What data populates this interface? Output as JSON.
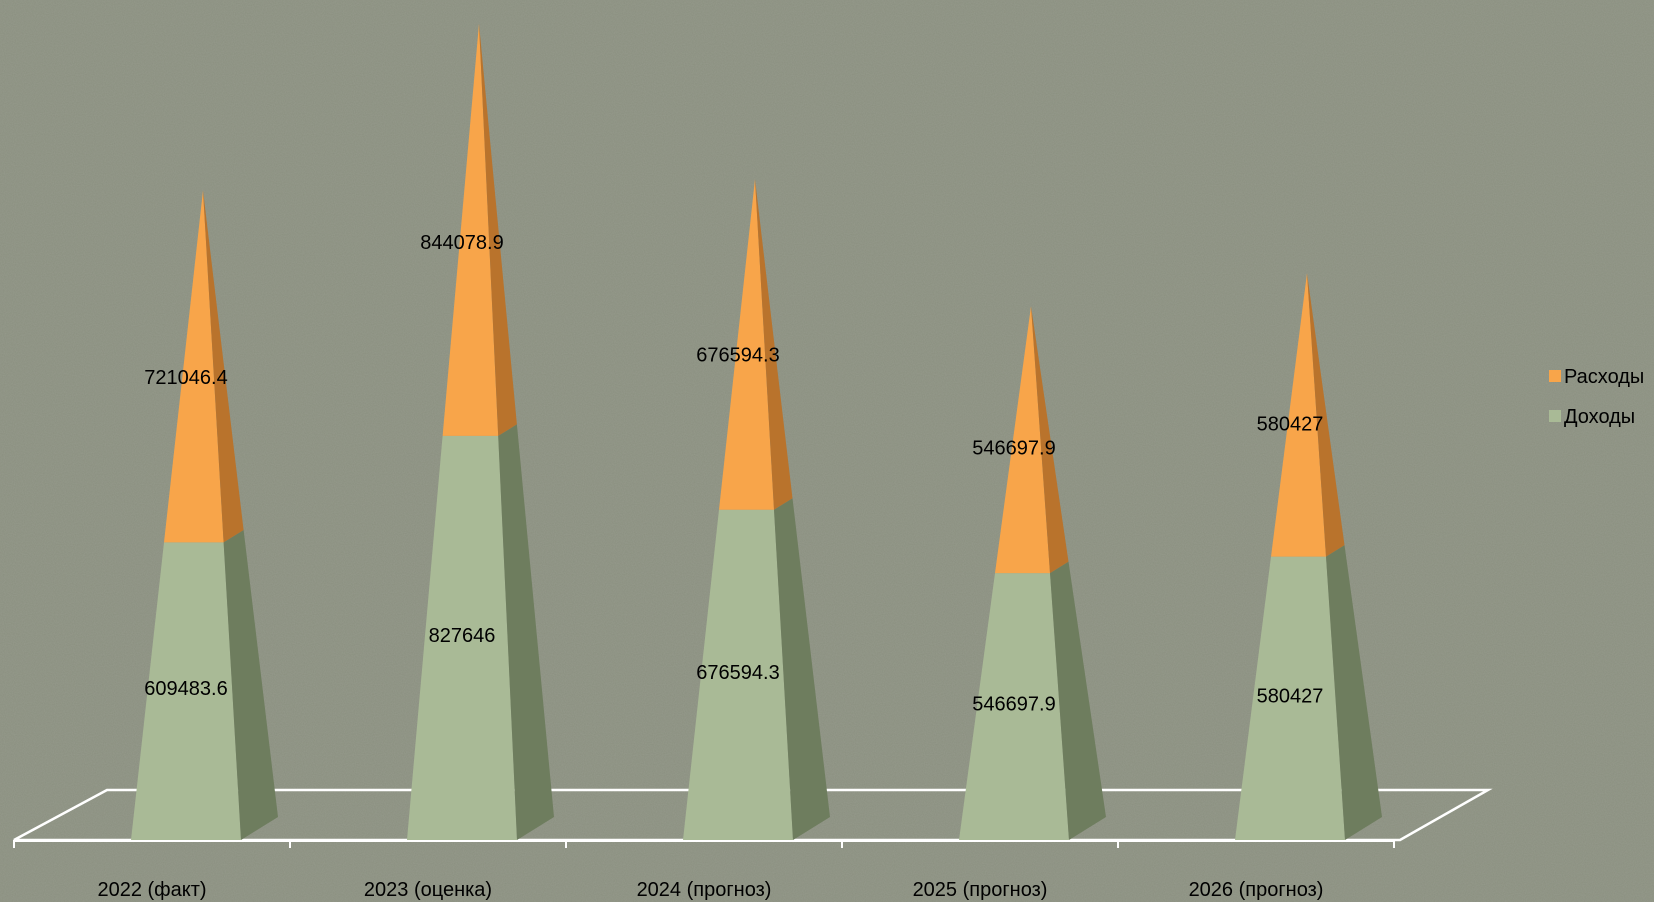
{
  "chart_data": {
    "type": "bar",
    "subtype": "stacked-3d-pyramid",
    "categories": [
      "2022 (факт)",
      "2023 (оценка)",
      "2024 (прогноз)",
      "2025 (прогноз)",
      "2026 (прогноз)"
    ],
    "series": [
      {
        "name": "Доходы",
        "values": [
          609483.6,
          827646,
          676594.3,
          546697.9,
          580427
        ],
        "color": "#a9ba96"
      },
      {
        "name": "Расходы",
        "values": [
          721046.4,
          844078.9,
          676594.3,
          546697.9,
          580427
        ],
        "color": "#f8a54a"
      }
    ],
    "title": "",
    "xlabel": "",
    "ylabel": "",
    "ylim": [
      0,
      1700000
    ],
    "grid": false,
    "legend_position": "right",
    "background_color": "#8a8f7f",
    "floor_color": "#ffffff"
  }
}
